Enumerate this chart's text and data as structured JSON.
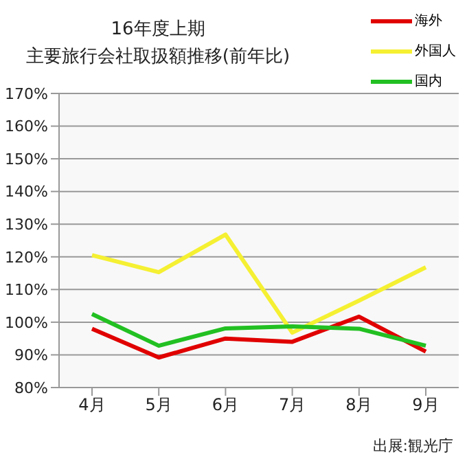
{
  "chart_data": {
    "type": "line",
    "title": "16年度上期",
    "subtitle": "主要旅行会社取扱額推移(前年比)",
    "categories": [
      "4月",
      "5月",
      "6月",
      "7月",
      "8月",
      "9月"
    ],
    "series": [
      {
        "name": "海外",
        "color": "#e00000",
        "values": [
          98,
          89.2,
          95,
          94,
          101.7,
          91
        ]
      },
      {
        "name": "外国人",
        "color": "#f5f032",
        "values": [
          120.5,
          115.3,
          126.8,
          96.8,
          106.6,
          116.8
        ]
      },
      {
        "name": "国内",
        "color": "#22c022",
        "values": [
          102.5,
          92.8,
          98.1,
          98.7,
          98,
          92.8
        ]
      }
    ],
    "ylim": [
      80,
      170
    ],
    "yticks": [
      {
        "value": 80,
        "label": "80%"
      },
      {
        "value": 90,
        "label": "90%"
      },
      {
        "value": 100,
        "label": "100%"
      },
      {
        "value": 110,
        "label": "110%"
      },
      {
        "value": 120,
        "label": "120%"
      },
      {
        "value": 130,
        "label": "130%"
      },
      {
        "value": 140,
        "label": "140%"
      },
      {
        "value": 150,
        "label": "150%"
      },
      {
        "value": 160,
        "label": "160%"
      },
      {
        "value": 170,
        "label": "170%"
      }
    ],
    "grid": "y",
    "legend": "top right",
    "marker": "none",
    "line_style": "solid",
    "annotations": [
      "出展:観光庁"
    ]
  }
}
